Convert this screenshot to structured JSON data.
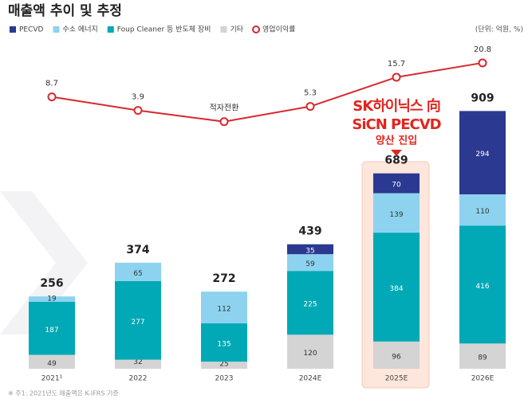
{
  "chart_data": {
    "type": "bar",
    "title": "매출액 추이 및 추정",
    "unit": "(단위: 억원, %)",
    "note": "※ 주1: 2021년도 매출액은 K-IFRS 기준",
    "annotation": [
      "SK하이닉스 向",
      "SiCN PECVD",
      "양산 진입"
    ],
    "categories": [
      "2021¹",
      "2022",
      "2023",
      "2024E",
      "2025E",
      "2026E"
    ],
    "series": [
      {
        "name": "PECVD",
        "color": "#2b3990",
        "values": [
          null,
          null,
          null,
          35,
          70,
          294
        ]
      },
      {
        "name": "수소 에너지",
        "color": "#8dd3f0",
        "values": [
          19,
          65,
          112,
          59,
          139,
          110
        ]
      },
      {
        "name": "Foup Cleaner 등 반도체 장비",
        "color": "#00a9b5",
        "values": [
          187,
          277,
          135,
          225,
          384,
          416
        ]
      },
      {
        "name": "기타",
        "color": "#d4d4d4",
        "values": [
          49,
          32,
          25,
          120,
          96,
          89
        ]
      },
      {
        "name": "영업이익률",
        "type": "line",
        "axis": "y2",
        "color": "#d7282f",
        "values": [
          8.7,
          3.9,
          -0.1,
          5.3,
          15.7,
          20.8
        ],
        "value_labels": [
          "8.7",
          "3.9",
          "적자전환",
          "5.3",
          "15.7",
          "20.8"
        ]
      }
    ],
    "totals": [
      256,
      374,
      272,
      439,
      689,
      909
    ],
    "ylim": [
      0,
      1160
    ],
    "y2lim": [
      -88,
      29
    ],
    "grid": false
  }
}
